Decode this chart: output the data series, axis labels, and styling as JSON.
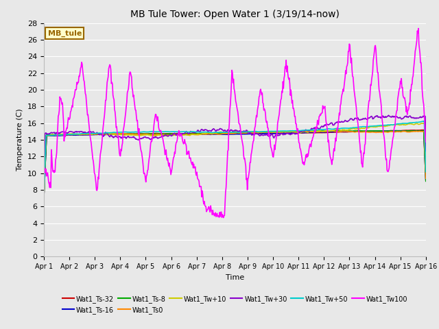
{
  "title": "MB Tule Tower: Open Water 1 (3/19/14-now)",
  "xlabel": "Time",
  "ylabel": "Temperature (C)",
  "ylim": [
    0,
    28
  ],
  "yticks": [
    0,
    2,
    4,
    6,
    8,
    10,
    12,
    14,
    16,
    18,
    20,
    22,
    24,
    26,
    28
  ],
  "background_color": "#e8e8e8",
  "plot_bg_color": "#e8e8e8",
  "series": [
    {
      "label": "Wat1_Ts-32",
      "color": "#cc0000",
      "lw": 1.2
    },
    {
      "label": "Wat1_Ts-16",
      "color": "#0000cc",
      "lw": 1.2
    },
    {
      "label": "Wat1_Ts-8",
      "color": "#00aa00",
      "lw": 1.2
    },
    {
      "label": "Wat1_Ts0",
      "color": "#ff8800",
      "lw": 1.2
    },
    {
      "label": "Wat1_Tw+10",
      "color": "#cccc00",
      "lw": 1.2
    },
    {
      "label": "Wat1_Tw+30",
      "color": "#8800cc",
      "lw": 1.2
    },
    {
      "label": "Wat1_Tw+50",
      "color": "#00cccc",
      "lw": 1.2
    },
    {
      "label": "Wat1_Tw100",
      "color": "#ff00ff",
      "lw": 1.2
    }
  ],
  "x_start": 0,
  "x_end": 15,
  "n_points": 720,
  "xtick_labels": [
    "Apr 1",
    "Apr 2",
    "Apr 3",
    "Apr 4",
    "Apr 5",
    "Apr 6",
    "Apr 7",
    "Apr 8",
    "Apr 9",
    "Apr 10",
    "Apr 11",
    "Apr 12",
    "Apr 13",
    "Apr 14",
    "Apr 15",
    "Apr 16"
  ],
  "xtick_positions": [
    0,
    1,
    2,
    3,
    4,
    5,
    6,
    7,
    8,
    9,
    10,
    11,
    12,
    13,
    14,
    15
  ],
  "inset_label": "MB_tule",
  "inset_bg": "#ffffcc",
  "inset_border": "#996600"
}
